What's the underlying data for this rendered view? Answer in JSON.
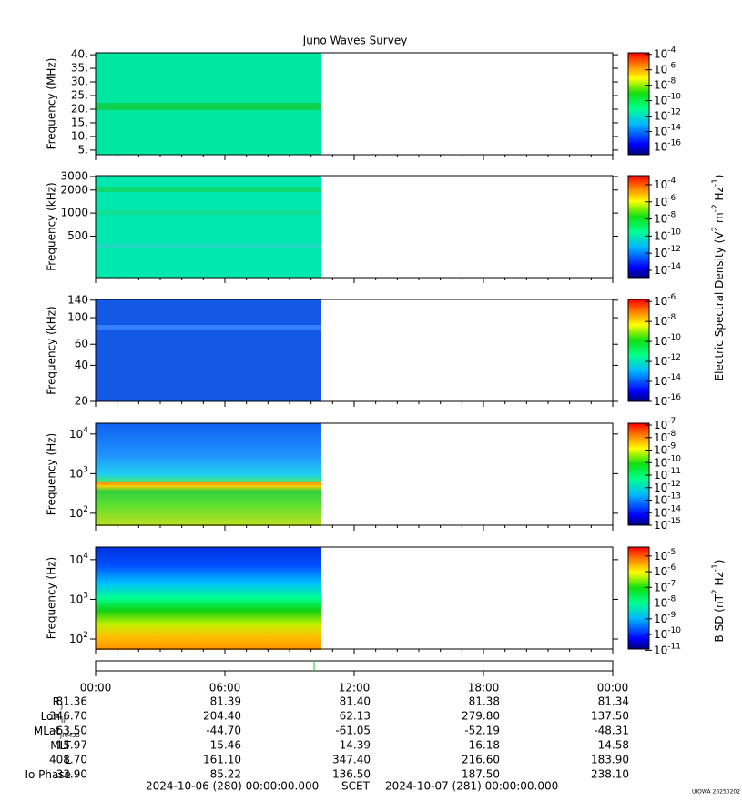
{
  "title": "Juno Waves Survey",
  "panels": [
    {
      "ylabel": "Frequency (MHz)",
      "log": false,
      "ylim": [
        3.3,
        40.7
      ],
      "yticks": [
        {
          "value": 40,
          "label": "40."
        },
        {
          "value": 35,
          "label": "35."
        },
        {
          "value": 30,
          "label": "30."
        },
        {
          "value": 25,
          "label": "25."
        },
        {
          "value": 20,
          "label": "20."
        },
        {
          "value": 15,
          "label": "15."
        },
        {
          "value": 10,
          "label": "10."
        },
        {
          "value": 5,
          "label": "5."
        }
      ],
      "colorbar": {
        "zlim": [
          1e-17,
          0.00016
        ],
        "ticks": [
          {
            "value": 0.0001,
            "label": {
              "base": "10",
              "exp": "-4"
            }
          },
          {
            "value": 1e-06,
            "label": {
              "base": "10",
              "exp": "-6"
            }
          },
          {
            "value": 1e-08,
            "label": {
              "base": "10",
              "exp": "-8"
            }
          },
          {
            "value": 1e-10,
            "label": {
              "base": "10",
              "exp": "-10"
            }
          },
          {
            "value": 1e-12,
            "label": {
              "base": "10",
              "exp": "-12"
            }
          },
          {
            "value": 1e-14,
            "label": {
              "base": "10",
              "exp": "-14"
            }
          },
          {
            "value": 1e-16,
            "label": {
              "base": "10",
              "exp": "-16"
            }
          }
        ]
      }
    },
    {
      "ylabel": "Frequency (kHz)",
      "log": true,
      "ylim": [
        144,
        3080
      ],
      "yticks": [
        3000,
        2000,
        1000,
        500
      ],
      "colorbar": {
        "zlim": [
          1.4e-15,
          0.00115
        ],
        "ticks": [
          {
            "value": 0.0001,
            "label": {
              "base": "10",
              "exp": "-4"
            }
          },
          {
            "value": 1e-06,
            "label": {
              "base": "10",
              "exp": "-6"
            }
          },
          {
            "value": 1e-08,
            "label": {
              "base": "10",
              "exp": "-8"
            }
          },
          {
            "value": 1e-10,
            "label": {
              "base": "10",
              "exp": "-10"
            }
          },
          {
            "value": 1e-12,
            "label": {
              "base": "10",
              "exp": "-12"
            }
          },
          {
            "value": 1e-14,
            "label": {
              "base": "10",
              "exp": "-14"
            }
          }
        ]
      }
    },
    {
      "ylabel": "Frequency (kHz)",
      "log": true,
      "ylim": [
        20,
        142
      ],
      "yticks": [
        140,
        100,
        60,
        40,
        20
      ],
      "colorbar": {
        "zlim": [
          1e-16,
          1.6e-06
        ],
        "ticks": [
          {
            "value": 1e-06,
            "label": {
              "base": "10",
              "exp": "-6"
            }
          },
          {
            "value": 1e-08,
            "label": {
              "base": "10",
              "exp": "-8"
            }
          },
          {
            "value": 1e-10,
            "label": {
              "base": "10",
              "exp": "-10"
            }
          },
          {
            "value": 1e-12,
            "label": {
              "base": "10",
              "exp": "-12"
            }
          },
          {
            "value": 1e-14,
            "label": {
              "base": "10",
              "exp": "-14"
            }
          },
          {
            "value": 1e-16,
            "label": {
              "base": "10",
              "exp": "-16"
            }
          }
        ]
      }
    },
    {
      "ylabel": "Frequency (Hz)",
      "log": true,
      "ylim": [
        50,
        18700
      ],
      "yticks": [
        {
          "value": 10000,
          "label": {
            "base": "10",
            "exp": "4"
          }
        },
        {
          "value": 1000,
          "label": {
            "base": "10",
            "exp": "3"
          }
        },
        {
          "value": 100,
          "label": {
            "base": "10",
            "exp": "2"
          }
        }
      ],
      "colorbar": {
        "zlim": [
          1e-15,
          1.4e-07
        ],
        "ticks": [
          {
            "value": 1e-07,
            "label": {
              "base": "10",
              "exp": "-7"
            }
          },
          {
            "value": 1e-08,
            "label": {
              "base": "10",
              "exp": "-8"
            }
          },
          {
            "value": 1e-09,
            "label": {
              "base": "10",
              "exp": "-9"
            }
          },
          {
            "value": 1e-10,
            "label": {
              "base": "10",
              "exp": "-10"
            }
          },
          {
            "value": 1e-11,
            "label": {
              "base": "10",
              "exp": "-11"
            }
          },
          {
            "value": 1e-12,
            "label": {
              "base": "10",
              "exp": "-12"
            }
          },
          {
            "value": 1e-13,
            "label": {
              "base": "10",
              "exp": "-13"
            }
          },
          {
            "value": 1e-14,
            "label": {
              "base": "10",
              "exp": "-14"
            }
          },
          {
            "value": 1e-15,
            "label": {
              "base": "10",
              "exp": "-15"
            }
          }
        ]
      }
    },
    {
      "ylabel": "Frequency (Hz)",
      "log": true,
      "ylim": [
        56,
        20800
      ],
      "yticks": [
        {
          "value": 10000,
          "label": {
            "base": "10",
            "exp": "4"
          }
        },
        {
          "value": 1000,
          "label": {
            "base": "10",
            "exp": "3"
          }
        },
        {
          "value": 100,
          "label": {
            "base": "10",
            "exp": "2"
          }
        }
      ],
      "colorbar": {
        "zlim": [
          1.2e-11,
          3.7e-05
        ],
        "ticks": [
          {
            "value": 1e-05,
            "label": {
              "base": "10",
              "exp": "-5"
            }
          },
          {
            "value": 1e-06,
            "label": {
              "base": "10",
              "exp": "-6"
            }
          },
          {
            "value": 1e-07,
            "label": {
              "base": "10",
              "exp": "-7"
            }
          },
          {
            "value": 1e-08,
            "label": {
              "base": "10",
              "exp": "-8"
            }
          },
          {
            "value": 1e-09,
            "label": {
              "base": "10",
              "exp": "-9"
            }
          },
          {
            "value": 1e-10,
            "label": {
              "base": "10",
              "exp": "-10"
            }
          },
          {
            "value": 1e-11,
            "label": {
              "base": "10",
              "exp": "-11"
            }
          }
        ]
      }
    }
  ],
  "e_label": [
    "Electric Spectral Density (V",
    "2",
    " m",
    "-2",
    " Hz",
    "-1",
    ")"
  ],
  "b_label": [
    "B SD (nT",
    "2",
    " Hz",
    "-1",
    ")"
  ],
  "xticks": [
    "00:00",
    "06:00",
    "12:00",
    "18:00",
    "00:00"
  ],
  "ephemeris": [
    {
      "label": "R",
      "sub": "J",
      "values": [
        "81.36",
        "81.39",
        "81.40",
        "81.38",
        "81.34"
      ]
    },
    {
      "label": "Lon",
      "sub": "III",
      "values": [
        "346.70",
        "204.40",
        "62.13",
        "279.80",
        "137.50"
      ]
    },
    {
      "label": "MLat",
      "sub": "JRM33",
      "values": [
        "-63.50",
        "-44.70",
        "-61.05",
        "-52.19",
        "-48.31"
      ]
    },
    {
      "label": "MLT",
      "values": [
        "15.97",
        "15.46",
        "14.39",
        "16.18",
        "14.58"
      ]
    },
    {
      "label": "L",
      "values": [
        "408.70",
        "161.10",
        "347.40",
        "216.60",
        "183.90"
      ]
    },
    {
      "label": "Io Phase",
      "values": [
        "33.90",
        "85.22",
        "136.50",
        "187.50",
        "238.10"
      ]
    }
  ],
  "footer": {
    "start": "2024-10-06 (280) 00:00:00.000",
    "scet": "SCET",
    "end": "2024-10-07 (281) 00:00:00.000"
  },
  "credit": "UIOWA 20250202"
}
